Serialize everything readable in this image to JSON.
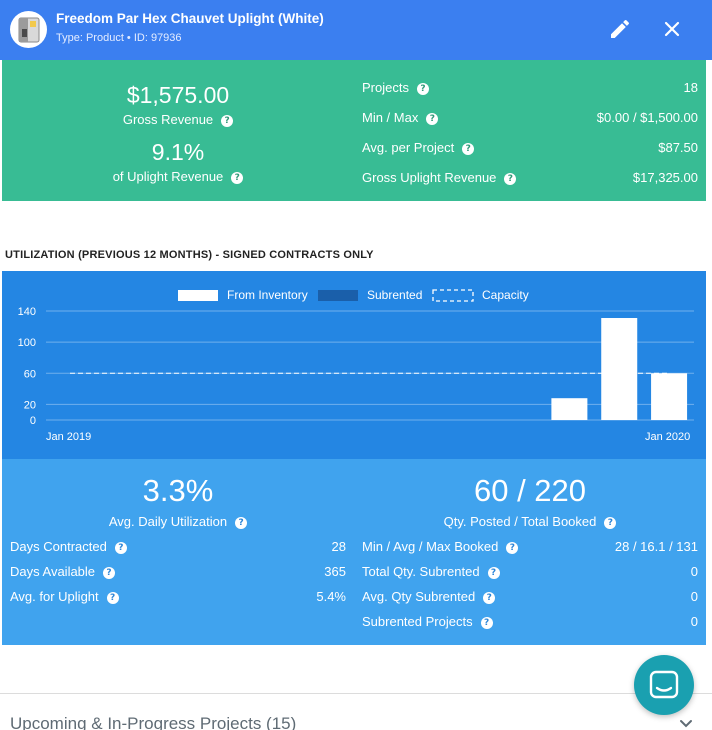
{
  "header": {
    "title": "Freedom Par Hex Chauvet Uplight (White)",
    "type_line": "Type: Product • ID: 97936",
    "bg_color": "#3b7ff0"
  },
  "revenue": {
    "gross_revenue_value": "$1,575.00",
    "gross_revenue_label": "Gross Revenue",
    "share_value": "9.1%",
    "share_label": "of Uplight Revenue",
    "stats": [
      {
        "label": "Projects",
        "value": "18"
      },
      {
        "label": "Min / Max",
        "value": "$0.00 / $1,500.00"
      },
      {
        "label": "Avg. per Project",
        "value": "$87.50"
      },
      {
        "label": "Gross Uplight Revenue",
        "value": "$17,325.00"
      }
    ],
    "bg_color": "#38bc94"
  },
  "section_title": "UTILIZATION (PREVIOUS 12 MONTHS) - SIGNED CONTRACTS ONLY",
  "chart_data": {
    "type": "bar",
    "legend": [
      "From Inventory",
      "Subrented",
      "Capacity"
    ],
    "y_ticks": [
      "140",
      "100",
      "60",
      "20",
      "0"
    ],
    "ylim": [
      0,
      140
    ],
    "x_tick_labels": [
      "Jan 2019",
      "Jan 2020"
    ],
    "capacity": 60,
    "series": [
      {
        "name": "From Inventory",
        "values": [
          0,
          0,
          0,
          0,
          0,
          0,
          0,
          0,
          0,
          0,
          28,
          131,
          60
        ]
      },
      {
        "name": "Subrented",
        "values": [
          0,
          0,
          0,
          0,
          0,
          0,
          0,
          0,
          0,
          0,
          0,
          0,
          0
        ]
      }
    ],
    "bg_color": "#2486e3"
  },
  "utilization": {
    "avg_daily_value": "3.3%",
    "avg_daily_label": "Avg. Daily Utilization",
    "qty_value": "60 / 220",
    "qty_label": "Qty. Posted / Total Booked",
    "left_stats": [
      {
        "label": "Days Contracted",
        "value": "28"
      },
      {
        "label": "Days Available",
        "value": "365"
      },
      {
        "label": "Avg. for Uplight",
        "value": "5.4%"
      }
    ],
    "right_stats": [
      {
        "label": "Min / Avg / Max Booked",
        "value": "28 / 16.1 / 131"
      },
      {
        "label": "Total Qty. Subrented",
        "value": "0"
      },
      {
        "label": "Avg. Qty Subrented",
        "value": "0"
      },
      {
        "label": "Subrented Projects",
        "value": "0"
      }
    ],
    "bg_color": "#40a3ee"
  },
  "footer": {
    "upcoming_label": "Upcoming & In-Progress Projects (15)"
  },
  "help_glyph": "?"
}
